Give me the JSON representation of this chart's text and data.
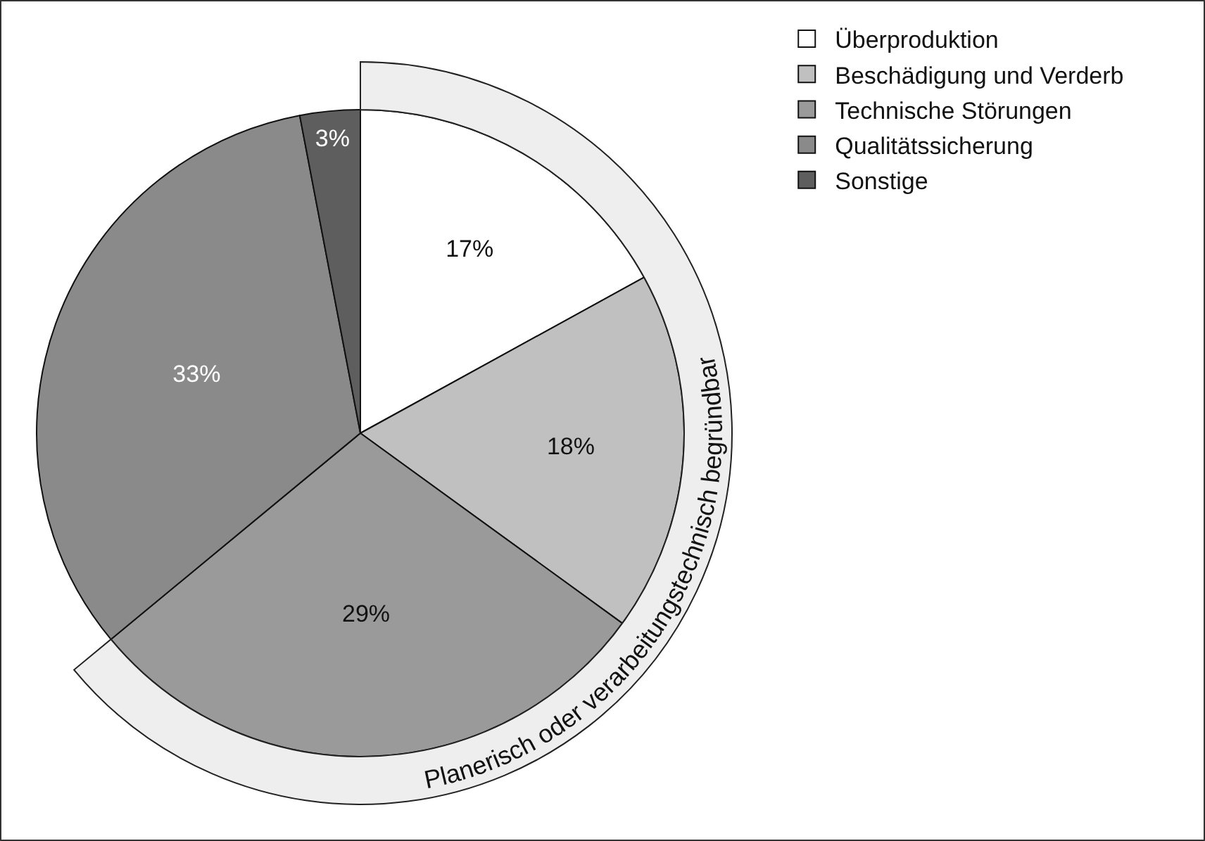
{
  "chart_data": {
    "type": "pie",
    "categories": [
      "Überproduktion",
      "Beschädigung und Verderb",
      "Technische Störungen",
      "Qualitätssicherung",
      "Sonstige"
    ],
    "values": [
      17,
      18,
      29,
      33,
      3
    ],
    "colors": [
      "#ffffff",
      "#c0c0c0",
      "#9a9a9a",
      "#8a8a8a",
      "#5e5e5e"
    ],
    "value_labels": [
      "17%",
      "18%",
      "29%",
      "33%",
      "3%"
    ],
    "legend": "top right",
    "annotations": [
      "Planerisch oder verarbeitungstechnisch begründbar"
    ]
  }
}
